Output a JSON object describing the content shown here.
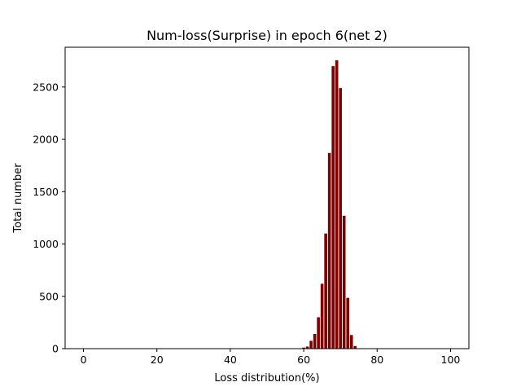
{
  "chart_data": {
    "type": "bar",
    "title": "Num-loss(Surprise) in epoch 6(net 2)",
    "xlabel": "Loss distribution(%)",
    "ylabel": "Total number",
    "xlim": [
      -5,
      105
    ],
    "ylim": [
      0,
      2880
    ],
    "x_ticks": [
      0,
      20,
      40,
      60,
      80,
      100
    ],
    "y_ticks": [
      0,
      500,
      1000,
      1500,
      2000,
      2500
    ],
    "bar_color": "#800000",
    "bar_width": 0.8,
    "series": [
      {
        "name": "Total number",
        "x": [
          60,
          61,
          62,
          63,
          64,
          65,
          66,
          67,
          68,
          69,
          70,
          71,
          72,
          73,
          74
        ],
        "values": [
          10,
          20,
          75,
          140,
          300,
          620,
          1100,
          1870,
          2700,
          2755,
          2490,
          1270,
          485,
          130,
          25
        ]
      }
    ]
  }
}
